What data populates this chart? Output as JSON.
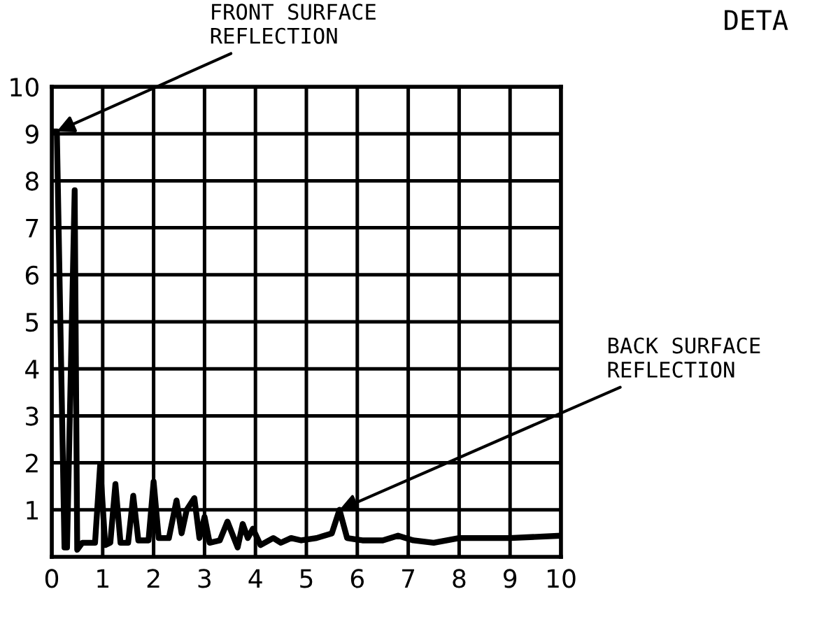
{
  "chart_data": {
    "type": "line",
    "color": "#000000",
    "x": [
      0.05,
      0.1,
      0.25,
      0.3,
      0.45,
      0.5,
      0.6,
      0.85,
      0.95,
      1.05,
      1.15,
      1.25,
      1.35,
      1.5,
      1.6,
      1.7,
      1.9,
      2.0,
      2.1,
      2.3,
      2.45,
      2.55,
      2.65,
      2.8,
      2.9,
      3.0,
      3.1,
      3.3,
      3.45,
      3.65,
      3.75,
      3.85,
      3.95,
      4.1,
      4.35,
      4.5,
      4.7,
      4.9,
      5.2,
      5.5,
      5.65,
      5.8,
      6.1,
      6.5,
      6.8,
      7.1,
      7.5,
      8.0,
      9.0,
      10.0
    ],
    "values": [
      9.05,
      9.05,
      0.2,
      0.2,
      7.8,
      0.15,
      0.3,
      0.3,
      1.95,
      0.25,
      0.3,
      1.55,
      0.3,
      0.3,
      1.3,
      0.35,
      0.35,
      1.6,
      0.4,
      0.4,
      1.2,
      0.5,
      1.0,
      1.25,
      0.4,
      0.85,
      0.3,
      0.35,
      0.75,
      0.2,
      0.7,
      0.4,
      0.6,
      0.25,
      0.4,
      0.3,
      0.4,
      0.35,
      0.4,
      0.5,
      1.0,
      0.4,
      0.35,
      0.35,
      0.45,
      0.35,
      0.3,
      0.4,
      0.4,
      0.45
    ],
    "xlim": [
      0,
      10
    ],
    "ylim": [
      0,
      10
    ],
    "xticks": [
      0,
      1,
      2,
      3,
      4,
      5,
      6,
      7,
      8,
      9,
      10
    ],
    "yticks": [
      1,
      2,
      3,
      4,
      5,
      6,
      7,
      8,
      9,
      10
    ],
    "grid": true,
    "annotations": [
      {
        "text": "FRONT SURFACE\nREFLECTION",
        "x": 0.1,
        "y": 9.05
      },
      {
        "text": "BACK SURFACE\nREFLECTION",
        "x": 5.65,
        "y": 1.0
      },
      "DETA"
    ]
  }
}
